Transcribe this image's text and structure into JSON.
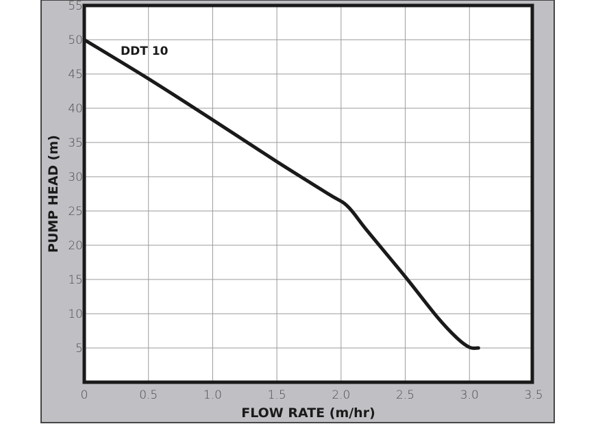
{
  "chart_data": {
    "type": "line",
    "title": "",
    "xlabel": "FLOW RATE (m/hr)",
    "ylabel": "PUMP HEAD (m)",
    "xlim": [
      0,
      3.5
    ],
    "ylim": [
      0,
      55
    ],
    "xticks": [
      "0",
      "0.5",
      "1.0",
      "1.5",
      "2.0",
      "2.5",
      "3.0",
      "3.5"
    ],
    "yticks": [
      "5",
      "10",
      "15",
      "20",
      "25",
      "30",
      "35",
      "40",
      "45",
      "50",
      "55"
    ],
    "grid": true,
    "series": [
      {
        "name": "DDT 10",
        "x": [
          0,
          0.5,
          1.0,
          1.5,
          1.9,
          2.05,
          2.2,
          2.5,
          2.75,
          2.9,
          3.0,
          3.07
        ],
        "y": [
          50,
          44.3,
          38.3,
          32.2,
          27.5,
          25.7,
          22.2,
          15.4,
          9.5,
          6.5,
          5.1,
          5.0
        ]
      }
    ],
    "colors": {
      "panel": "#c0bfc4",
      "plot": "#ffffff",
      "line": "#1a1a1a",
      "grid": "#9a9a9a"
    }
  }
}
